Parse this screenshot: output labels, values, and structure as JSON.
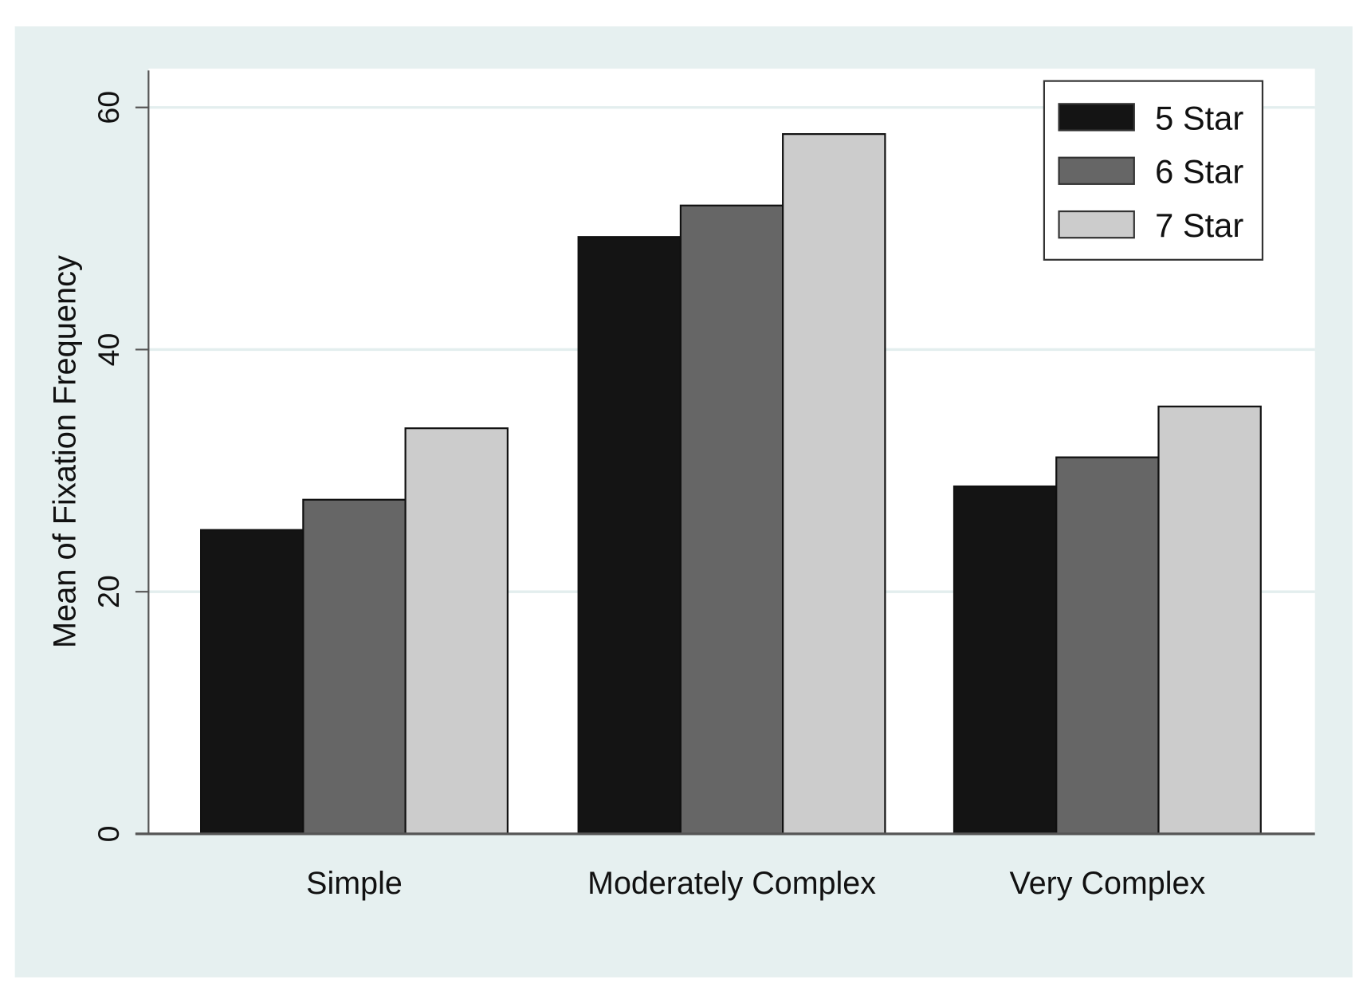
{
  "chart_data": {
    "type": "bar",
    "title": "",
    "xlabel": "",
    "ylabel": "Mean of Fixation Frequency",
    "ylim": [
      0,
      63
    ],
    "yticks": [
      "0",
      "20",
      "40",
      "60"
    ],
    "categories": [
      "Simple",
      "Moderately Complex",
      "Very Complex"
    ],
    "series": [
      {
        "name": "5 Star",
        "color": "#141414",
        "values": [
          25.1,
          49.3,
          28.7
        ]
      },
      {
        "name": "6 Star",
        "color": "#666666",
        "values": [
          27.6,
          51.9,
          31.1
        ]
      },
      {
        "name": "7 Star",
        "color": "#cccccc",
        "values": [
          33.5,
          57.8,
          35.3
        ]
      }
    ],
    "grid": true,
    "legend": "top-right",
    "background": "#e6f0f0"
  }
}
